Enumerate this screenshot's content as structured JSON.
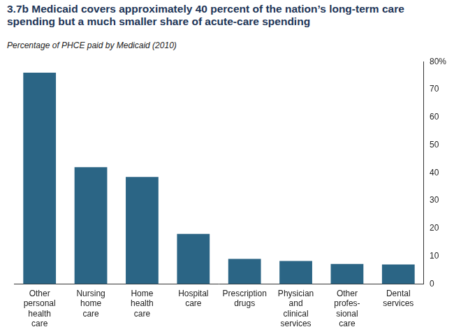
{
  "chart_data": {
    "type": "bar",
    "title": "3.7b Medicaid covers approximately 40 percent of the nation’s long-term care spending but a much smaller share of acute-care spending",
    "subtitle": "Percentage of PHCE paid by Medicaid (2010)",
    "categories": [
      [
        "Other",
        "personal",
        "health",
        "care"
      ],
      [
        "Nursing",
        "home",
        "care"
      ],
      [
        "Home",
        "health",
        "care"
      ],
      [
        "Hospital",
        "care"
      ],
      [
        "Prescription",
        "drugs"
      ],
      [
        "Physician",
        "and",
        "clinical",
        "services"
      ],
      [
        "Other",
        "profes-",
        "sional",
        "care"
      ],
      [
        "Dental",
        "services"
      ]
    ],
    "values": [
      76,
      42,
      38.5,
      18,
      9,
      8.3,
      7.2,
      7
    ],
    "color": "#2b6585",
    "ylim": [
      0,
      80
    ],
    "yticks": [
      0,
      10,
      20,
      30,
      40,
      50,
      60,
      70,
      {
        "value": 80,
        "label": "80%"
      }
    ],
    "grid": false
  }
}
